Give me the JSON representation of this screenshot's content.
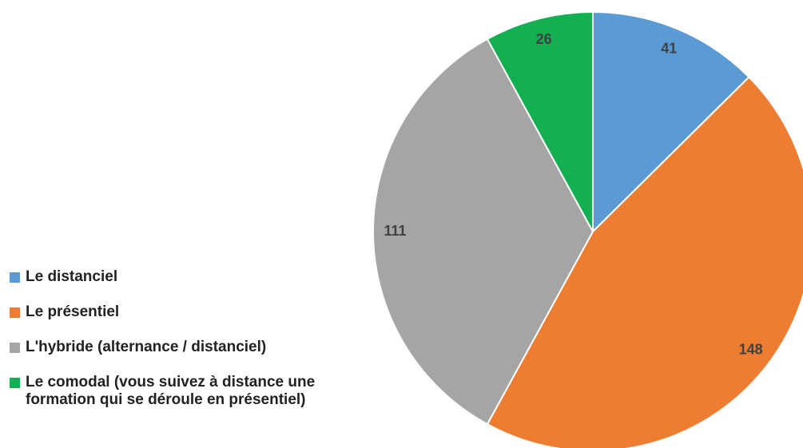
{
  "chart_data": {
    "type": "pie",
    "categories": [
      "Le distanciel",
      "Le présentiel",
      "L'hybride (alternance / distanciel)",
      "Le comodal (vous suivez à distance une formation qui se déroule en présentiel)"
    ],
    "values": [
      41,
      148,
      111,
      26
    ],
    "colors": [
      "#5b9bd5",
      "#ed7d31",
      "#a5a5a5",
      "#12b050"
    ],
    "legend": "left"
  }
}
